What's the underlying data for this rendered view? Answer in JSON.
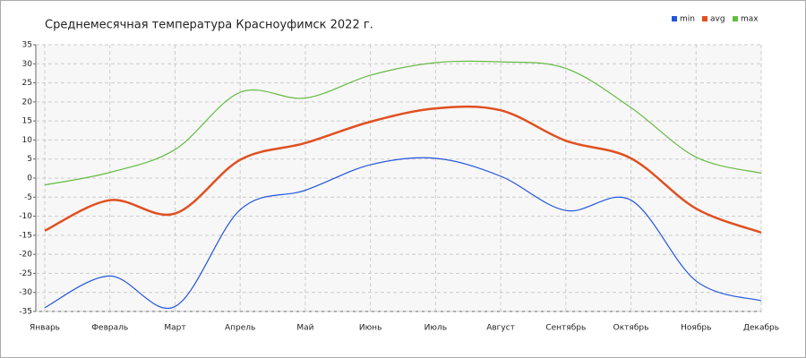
{
  "chart_data": {
    "type": "line",
    "title": "Среднемесячная температура Красноуфимск  2022 г.",
    "categories": [
      "Январь",
      "Февраль",
      "Март",
      "Апрель",
      "Май",
      "Июнь",
      "Июль",
      "Август",
      "Сентябрь",
      "Октябрь",
      "Ноябрь",
      "Декабрь"
    ],
    "series": [
      {
        "name": "min",
        "color": "#2255dd",
        "values": [
          -34,
          -25.7,
          -33.7,
          -8.3,
          -3.2,
          3.5,
          5.2,
          0.5,
          -8.5,
          -5.8,
          -27,
          -32.2
        ]
      },
      {
        "name": "avg",
        "color": "#e05020",
        "values": [
          -13.8,
          -5.8,
          -9.3,
          4.8,
          9.2,
          14.8,
          18.3,
          17.8,
          9.8,
          5.2,
          -8,
          -14.3
        ]
      },
      {
        "name": "max",
        "color": "#66bb44",
        "values": [
          -1.8,
          1.5,
          7.5,
          22.5,
          21,
          27,
          30.3,
          30.5,
          28.8,
          18.5,
          5.5,
          1.3
        ]
      }
    ],
    "ylim": [
      -35,
      35
    ],
    "yticks": [
      -35,
      -30,
      -25,
      -20,
      -15,
      -10,
      -5,
      0,
      5,
      10,
      15,
      20,
      25,
      30,
      35
    ],
    "grid": true,
    "legend": "top-right"
  }
}
